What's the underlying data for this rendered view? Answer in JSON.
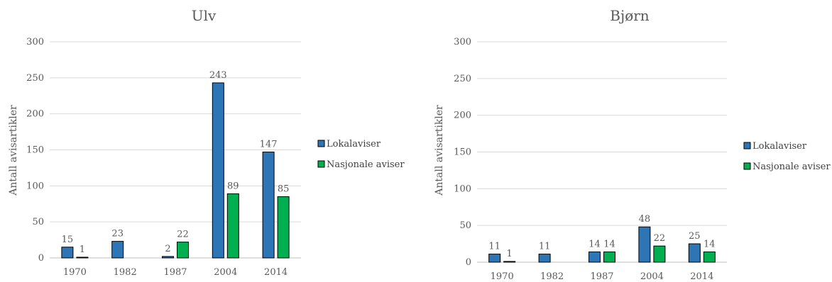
{
  "chart_data": [
    {
      "type": "bar",
      "title": "Ulv",
      "ylabel": "Antall avisartikler",
      "xlabel": "",
      "categories": [
        "1970",
        "1982",
        "1987",
        "2004",
        "2014"
      ],
      "ylim": [
        0,
        300
      ],
      "yticks": [
        "0",
        "50",
        "100",
        "150",
        "200",
        "250",
        "300"
      ],
      "grid": true,
      "legend": "right",
      "series": [
        {
          "name": "Lokalaviser",
          "color": "#2e75b6",
          "values": [
            15,
            23,
            2,
            243,
            147
          ],
          "labels": [
            "15",
            "23",
            "2",
            "243",
            "147"
          ]
        },
        {
          "name": "Nasjonale aviser",
          "color": "#00b050",
          "values": [
            1,
            0,
            22,
            89,
            85
          ],
          "labels": [
            "1",
            "",
            "22",
            "89",
            "85"
          ]
        }
      ]
    },
    {
      "type": "bar",
      "title": "Bjørn",
      "ylabel": "Antall avisartikler",
      "xlabel": "",
      "categories": [
        "1970",
        "1982",
        "1987",
        "2004",
        "2014"
      ],
      "ylim": [
        0,
        300
      ],
      "yticks": [
        "0",
        "50",
        "100",
        "150",
        "200",
        "250",
        "300"
      ],
      "grid": true,
      "legend": "right",
      "series": [
        {
          "name": "Lokalaviser",
          "color": "#2e75b6",
          "values": [
            11,
            11,
            14,
            48,
            25
          ],
          "labels": [
            "11",
            "11",
            "14",
            "48",
            "25"
          ]
        },
        {
          "name": "Nasjonale aviser",
          "color": "#00b050",
          "values": [
            1,
            0,
            14,
            22,
            14
          ],
          "labels": [
            "1",
            "",
            "14",
            "22",
            "14"
          ]
        }
      ]
    }
  ]
}
